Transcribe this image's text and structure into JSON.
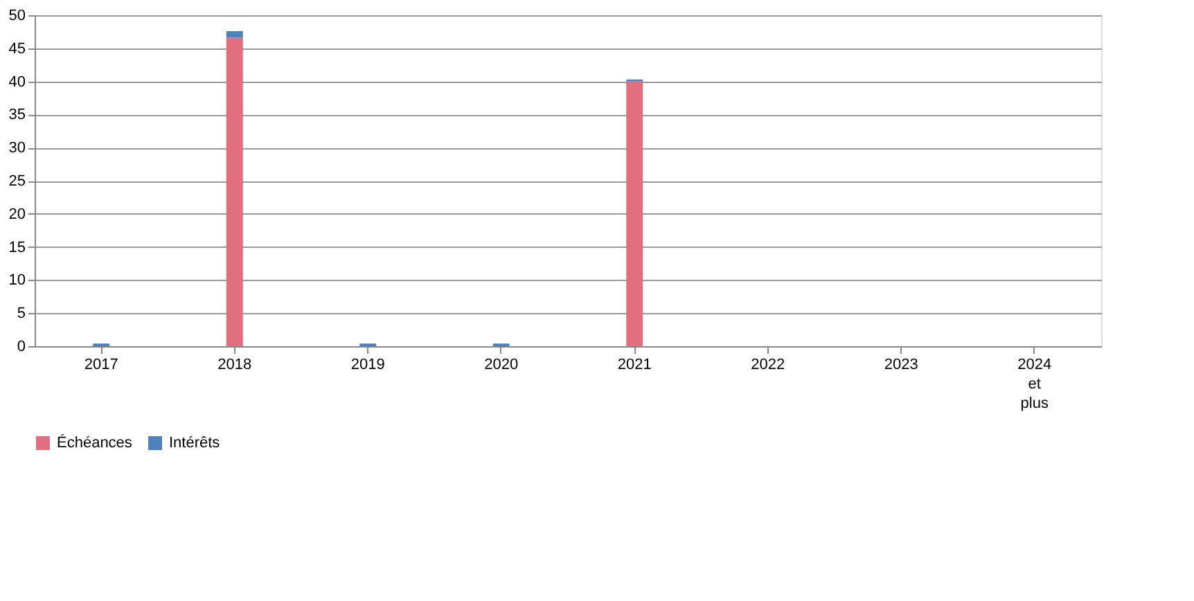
{
  "chart_data": {
    "type": "bar",
    "stacked": true,
    "categories": [
      "2017",
      "2018",
      "2019",
      "2020",
      "2021",
      "2022",
      "2023",
      "2024 et plus"
    ],
    "series": [
      {
        "name": "Échéances",
        "color": "#e07080",
        "values": [
          0,
          46.6,
          0,
          0,
          40,
          0,
          0,
          0
        ]
      },
      {
        "name": "Intérêts",
        "color": "#4f81bd",
        "values": [
          0.4,
          1.0,
          0.4,
          0.4,
          0.3,
          0,
          0,
          0
        ]
      }
    ],
    "ylim": [
      0,
      50
    ],
    "yticks": [
      0,
      5,
      10,
      15,
      20,
      25,
      30,
      35,
      40,
      45,
      50
    ],
    "grid": "y",
    "legend": "bottom"
  }
}
